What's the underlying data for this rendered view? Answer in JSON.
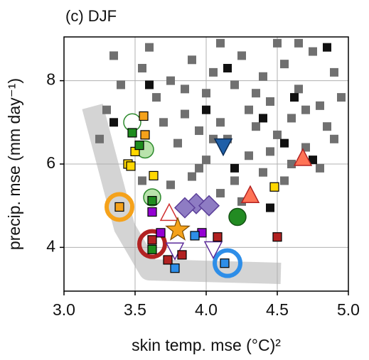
{
  "chart_data": {
    "type": "scatter",
    "title": "(c) DJF",
    "x_label": "skin temp. mse (°C)²",
    "y_label": "precip. mse (mm day⁻¹)",
    "xlim": [
      3.0,
      5.0
    ],
    "ylim": [
      2.95,
      9.05
    ],
    "xticks": [
      {
        "value": 3.0,
        "label": "3.0"
      },
      3.5,
      {
        "value": 4.0,
        "label": "4.0"
      },
      4.5,
      {
        "value": 5.0,
        "label": "5.0"
      }
    ],
    "yticks": [
      4,
      6,
      8
    ],
    "grid": true,
    "series": [
      {
        "marker": "square",
        "color": "#707070",
        "edgecolor": "none",
        "x": [
          3.4,
          3.55,
          3.65,
          3.75,
          3.85,
          3.9,
          3.95,
          4.0,
          4.05,
          4.1,
          4.15,
          4.2,
          4.25,
          4.3,
          4.35,
          4.4,
          4.45,
          4.5,
          4.55,
          4.6,
          4.65,
          4.7,
          4.75,
          4.8,
          4.85,
          4.9,
          4.95,
          4.6,
          4.4,
          4.2,
          4.0,
          3.8,
          3.7,
          3.3,
          3.25,
          3.35,
          3.6,
          4.1,
          4.5,
          4.3,
          4.8,
          4.9,
          3.9,
          4.1,
          4.25,
          4.55,
          3.75,
          3.55,
          3.95,
          4.35,
          4.7,
          4.45,
          4.05,
          3.85,
          4.65
        ],
        "y": [
          7.9,
          8.3,
          7.6,
          8.0,
          7.2,
          8.5,
          6.8,
          7.7,
          8.2,
          7.0,
          6.6,
          7.9,
          8.6,
          7.3,
          6.9,
          8.1,
          7.5,
          6.7,
          8.4,
          7.1,
          7.8,
          6.4,
          8.7,
          7.4,
          6.9,
          8.2,
          7.6,
          6.0,
          5.8,
          5.6,
          6.1,
          6.5,
          7.0,
          7.3,
          6.6,
          8.6,
          8.8,
          8.9,
          8.9,
          6.2,
          5.9,
          6.6,
          5.7,
          5.3,
          5.1,
          5.6,
          5.5,
          5.6,
          5.9,
          7.7,
          7.3,
          6.3,
          6.6,
          7.8,
          8.9
        ]
      },
      {
        "marker": "square",
        "color": "#111111",
        "edgecolor": "none",
        "x": [
          3.35,
          3.6,
          4.15,
          4.4,
          4.62,
          4.85,
          4.2,
          4.55,
          4.0,
          4.75,
          4.45
        ],
        "y": [
          7.0,
          7.9,
          8.3,
          7.1,
          7.6,
          8.8,
          5.9,
          6.5,
          7.3,
          6.1,
          4.95
        ]
      },
      {
        "marker": "ring",
        "color": "#f5a21b",
        "x": [
          3.39
        ],
        "y": [
          4.97
        ]
      },
      {
        "marker": "ring",
        "color": "#b22222",
        "x": [
          3.62
        ],
        "y": [
          4.08
        ]
      },
      {
        "marker": "ring",
        "color": "#2e8ee8",
        "x": [
          4.15
        ],
        "y": [
          3.62
        ]
      },
      {
        "marker": "circle",
        "color": "#ffffff",
        "edgecolor": "#2e8b2e",
        "x": [
          3.48
        ],
        "y": [
          7.0
        ]
      },
      {
        "marker": "circle",
        "color": "#b9e3ac",
        "edgecolor": "#2e8b2e",
        "x": [
          3.57,
          3.62
        ],
        "y": [
          6.35,
          5.2
        ]
      },
      {
        "marker": "circle",
        "color": "#228b22",
        "edgecolor": "#145214",
        "x": [
          4.22
        ],
        "y": [
          4.73
        ]
      },
      {
        "marker": "square",
        "color": "#f5a21b",
        "edgecolor": "#000000",
        "x": [
          3.56,
          3.57,
          3.39
        ],
        "y": [
          7.15,
          6.7,
          4.97
        ]
      },
      {
        "marker": "square",
        "color": "#ffd700",
        "edgecolor": "#000000",
        "x": [
          3.5,
          3.45,
          3.47,
          3.63,
          4.48
        ],
        "y": [
          6.3,
          6.0,
          5.95,
          5.72,
          5.45
        ]
      },
      {
        "marker": "square",
        "color": "#1e8c1e",
        "edgecolor": "#000000",
        "x": [
          3.48,
          3.53,
          3.62,
          3.62
        ],
        "y": [
          6.75,
          6.45,
          5.12,
          3.95
        ]
      },
      {
        "marker": "diamond",
        "color": "#8e7cc3",
        "edgecolor": "#5b3f99",
        "x": [
          3.93,
          4.02,
          3.85
        ],
        "y": [
          5.05,
          5.0,
          4.95
        ]
      },
      {
        "marker": "square",
        "color": "#9400d3",
        "edgecolor": "#000000",
        "x": [
          3.62,
          3.68,
          3.97
        ],
        "y": [
          4.85,
          4.35,
          4.35
        ]
      },
      {
        "marker": "tri-down",
        "color": "#ffffff",
        "edgecolor": "#5b2a99",
        "x": [
          4.05,
          3.78
        ],
        "y": [
          3.98,
          3.95
        ]
      },
      {
        "marker": "tri-down",
        "color": "#1f5fa8",
        "edgecolor": "#0d2d55",
        "x": [
          4.12
        ],
        "y": [
          6.45
        ]
      },
      {
        "marker": "tri-up",
        "color": "#ff7356",
        "edgecolor": "#b22222",
        "x": [
          4.68,
          4.31
        ],
        "y": [
          6.12,
          5.23
        ]
      },
      {
        "marker": "tri-up",
        "color": "#ffffff",
        "edgecolor": "#d03030",
        "x": [
          3.74
        ],
        "y": [
          4.8
        ]
      },
      {
        "marker": "square",
        "color": "#2e8ee8",
        "edgecolor": "#000000",
        "x": [
          3.92,
          3.78,
          4.13
        ],
        "y": [
          4.28,
          3.5,
          3.62
        ]
      },
      {
        "marker": "square",
        "color": "#b22222",
        "edgecolor": "#000000",
        "x": [
          3.73,
          3.83,
          4.08,
          4.5,
          3.62
        ],
        "y": [
          3.7,
          3.82,
          4.25,
          4.25,
          4.18
        ]
      },
      {
        "marker": "star",
        "color": "#f5a21b",
        "edgecolor": "#7a4a00",
        "x": [
          3.8
        ],
        "y": [
          4.42
        ]
      }
    ]
  }
}
